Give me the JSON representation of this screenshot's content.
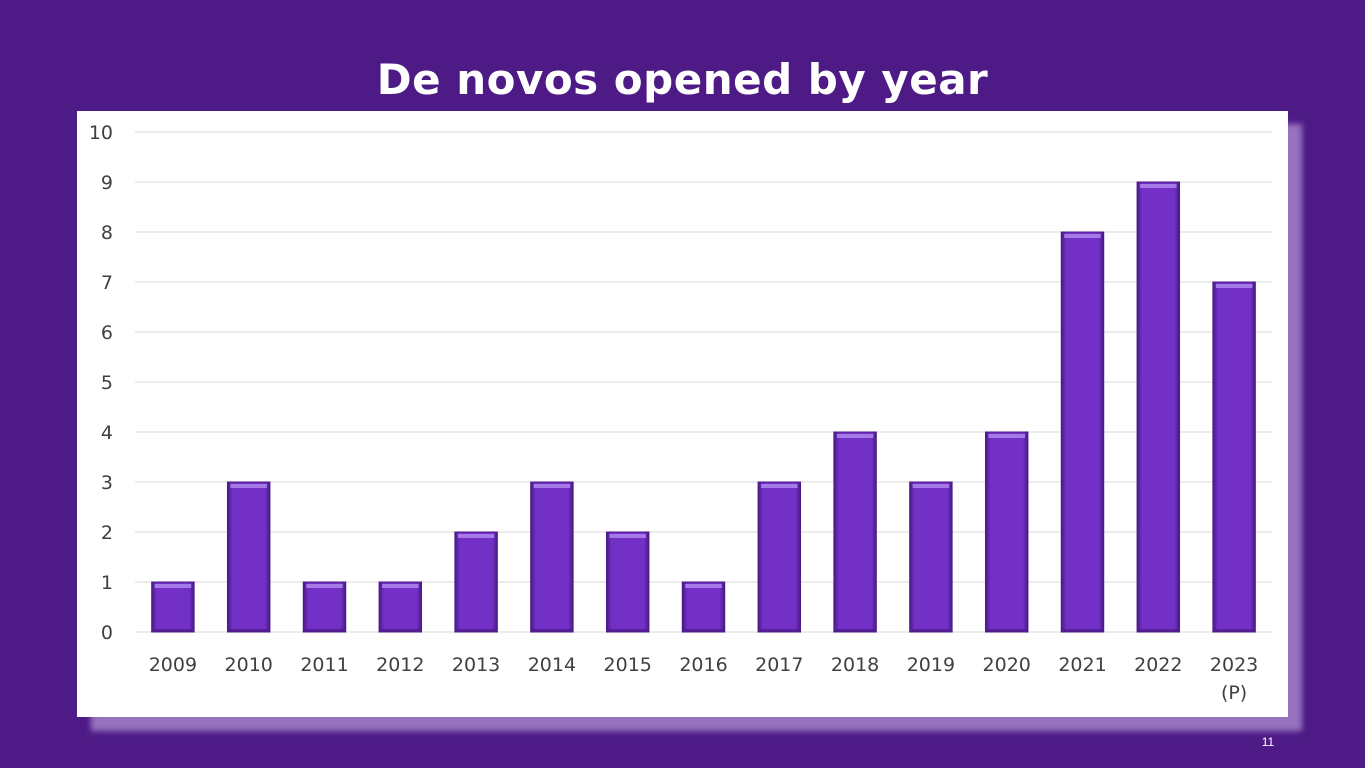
{
  "slide": {
    "title": "De novos opened by year",
    "page_number": "11"
  },
  "colors": {
    "background": "#4e1b86",
    "bar_fill": "#7330c6",
    "bar_edge": "#4a1a86",
    "bar_highlight": "#a67ae6",
    "gridline": "#d9d9d9",
    "tick_text": "#404040"
  },
  "chart_data": {
    "type": "bar",
    "title": "De novos opened by year",
    "categories": [
      "2009",
      "2010",
      "2011",
      "2012",
      "2013",
      "2014",
      "2015",
      "2016",
      "2017",
      "2018",
      "2019",
      "2020",
      "2021",
      "2022",
      "2023\n(P)"
    ],
    "values": [
      1,
      3,
      1,
      1,
      2,
      3,
      2,
      1,
      3,
      4,
      3,
      4,
      8,
      9,
      7
    ],
    "xlabel": "",
    "ylabel": "",
    "ylim": [
      0,
      10
    ],
    "yticks": [
      "0",
      "1",
      "2",
      "3",
      "4",
      "5",
      "6",
      "7",
      "8",
      "9",
      "10"
    ],
    "grid": true,
    "legend": "none"
  }
}
